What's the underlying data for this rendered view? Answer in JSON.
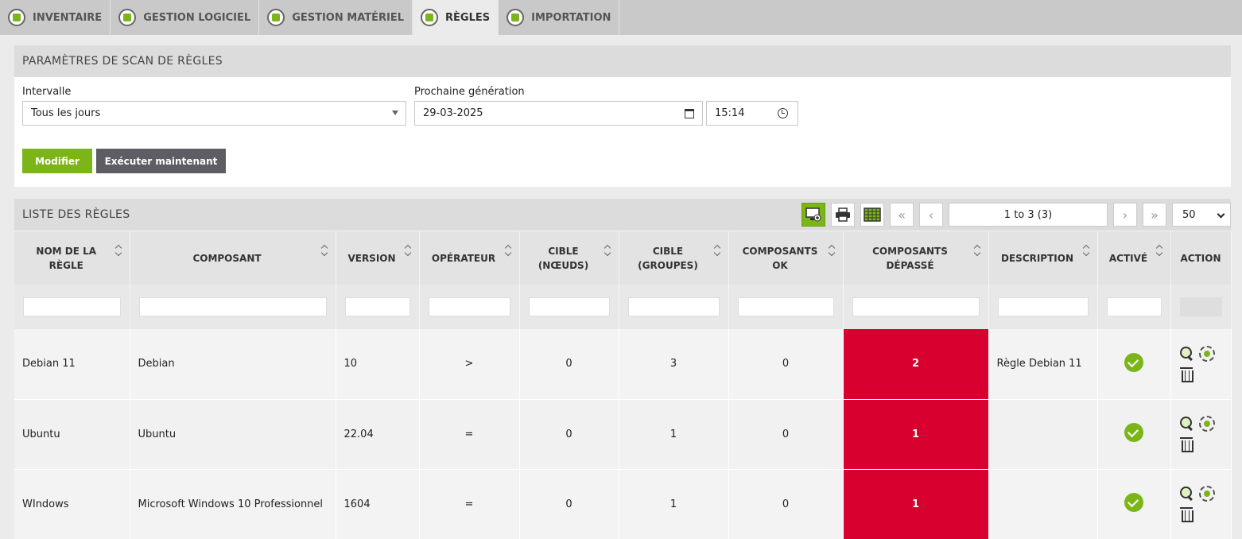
{
  "tabs": [
    {
      "label": "INVENTAIRE",
      "icon": "stack-icon",
      "active": false
    },
    {
      "label": "GESTION LOGICIEL",
      "icon": "software-icon",
      "active": false
    },
    {
      "label": "GESTION MATÉRIEL",
      "icon": "hardware-icon",
      "active": false
    },
    {
      "label": "RÈGLES",
      "icon": "rules-icon",
      "active": true
    },
    {
      "label": "IMPORTATION",
      "icon": "import-icon",
      "active": false
    }
  ],
  "scan": {
    "title": "PARAMÈTRES DE SCAN DE RÈGLES",
    "interval_label": "Intervalle",
    "interval_value": "Tous les jours",
    "next_label": "Prochaine génération",
    "next_date": "29-03-2025",
    "next_time": "15:14",
    "modify_button": "Modifier",
    "run_button": "Exécuter maintenant"
  },
  "list": {
    "title": "LISTE DES RÈGLES",
    "pager": "1 to 3 (3)",
    "page_size": "50",
    "columns": [
      "NOM DE LA RÈGLE",
      "COMPOSANT",
      "VERSION",
      "OPÉRATEUR",
      "CIBLE (NŒUDS)",
      "CIBLE (GROUPES)",
      "COMPOSANTS OK",
      "COMPOSANTS DÉPASSÉ",
      "DESCRIPTION",
      "ACTIVÉ",
      "ACTION"
    ],
    "rows": [
      {
        "name": "Debian 11",
        "component": "Debian",
        "version": "10",
        "operator": ">",
        "target_nodes": "0",
        "target_groups": "3",
        "ok": "0",
        "exceeded": "2",
        "description": "Règle Debian 11",
        "active": true
      },
      {
        "name": "Ubuntu",
        "component": "Ubuntu",
        "version": "22.04",
        "operator": "=",
        "target_nodes": "0",
        "target_groups": "1",
        "ok": "0",
        "exceeded": "1",
        "description": "",
        "active": true
      },
      {
        "name": "WIndows",
        "component": "Microsoft Windows 10 Professionnel",
        "version": "1604",
        "operator": "=",
        "target_nodes": "0",
        "target_groups": "1",
        "ok": "0",
        "exceeded": "1",
        "description": "",
        "active": true
      }
    ]
  },
  "colors": {
    "accent": "#7cb518",
    "danger": "#d8002e",
    "header": "#c9c9c9"
  }
}
